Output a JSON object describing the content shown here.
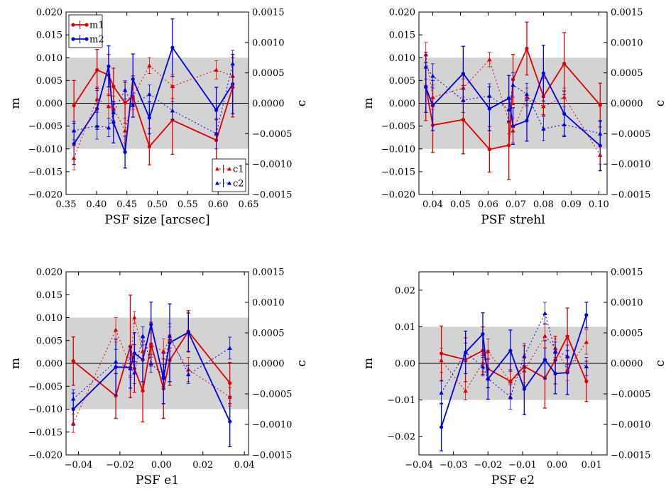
{
  "chart_data": [
    {
      "type": "line",
      "xlabel": "PSF size [arcsec]",
      "ylabel": "m",
      "ylabel_right": "c",
      "xlim": [
        0.35,
        0.65
      ],
      "ylim": [
        -0.02,
        0.02
      ],
      "ylim_right": [
        -0.0015,
        0.0015
      ],
      "xticks": [
        "0.35",
        "0.40",
        "0.45",
        "0.50",
        "0.55",
        "0.60",
        "0.65"
      ],
      "yticks": [
        "−0.020",
        "−0.015",
        "−0.010",
        "−0.005",
        "0.000",
        "0.005",
        "0.010",
        "0.015",
        "0.020"
      ],
      "yticks_right": [
        "−0.0015",
        "−0.0010",
        "−0.0005",
        "0.0000",
        "0.0005",
        "0.0010",
        "0.0015"
      ],
      "band": [
        -0.01,
        0.01
      ],
      "grid": false,
      "legends": [
        {
          "placement": "top-left",
          "entries": [
            "m1",
            "m2"
          ]
        },
        {
          "placement": "bottom-right",
          "entries": [
            "c1",
            "c2"
          ]
        }
      ],
      "series": [
        {
          "name": "m1",
          "axis": "left",
          "style": "solid-circle",
          "color": "#dd0000",
          "x": [
            0.363,
            0.401,
            0.42,
            0.428,
            0.447,
            0.46,
            0.487,
            0.525,
            0.597,
            0.624
          ],
          "y": [
            -0.0005,
            0.0073,
            0.0062,
            0.0037,
            0.0001,
            0.0015,
            -0.0095,
            -0.0037,
            -0.0081,
            0.0035
          ],
          "err": [
            0.0055,
            0.0045,
            0.0045,
            0.004,
            0.0045,
            0.0045,
            0.004,
            0.0075,
            0.0045,
            0.0065
          ]
        },
        {
          "name": "m2",
          "axis": "left",
          "style": "solid-circle",
          "color": "#0000dd",
          "x": [
            0.363,
            0.401,
            0.42,
            0.428,
            0.447,
            0.46,
            0.487,
            0.525,
            0.597,
            0.624
          ],
          "y": [
            -0.0089,
            -0.0012,
            0.0081,
            -0.0042,
            -0.0107,
            0.0053,
            -0.0032,
            0.0122,
            -0.0015,
            0.0042
          ],
          "err": [
            0.0045,
            0.0045,
            0.0045,
            0.0045,
            0.0035,
            0.0055,
            0.0035,
            0.0063,
            0.005,
            0.0065
          ]
        },
        {
          "name": "c1",
          "axis": "right",
          "style": "dotted-triangle",
          "color": "#dd0000",
          "x": [
            0.363,
            0.401,
            0.42,
            0.428,
            0.447,
            0.46,
            0.487,
            0.525,
            0.597,
            0.624
          ],
          "y": [
            -0.0009,
            7e-05,
            -5e-05,
            -8e-05,
            -0.00045,
            0.0001,
            0.00062,
            0.00028,
            0.00055,
            0.00045
          ],
          "err": [
            0.0002,
            0.0002,
            0.0002,
            0.0002,
            0.0002,
            0.0002,
            0.00013,
            0.0002,
            0.00015,
            0.0002
          ]
        },
        {
          "name": "c2",
          "axis": "right",
          "style": "dotted-triangle",
          "color": "#0000dd",
          "x": [
            0.363,
            0.401,
            0.42,
            0.428,
            0.447,
            0.46,
            0.487,
            0.525,
            0.597,
            0.624
          ],
          "y": [
            -0.00045,
            -0.00037,
            -0.0004,
            -0.00015,
            0.00022,
            -3e-05,
            0.00015,
            -0.00012,
            -0.0005,
            0.00065
          ],
          "err": [
            0.00015,
            0.00022,
            0.00015,
            0.00018,
            0.00015,
            0.0002,
            0.00015,
            0.00015,
            0.00025,
            0.00022
          ]
        }
      ]
    },
    {
      "type": "line",
      "xlabel": "PSF strehl",
      "ylabel": "m",
      "ylabel_right": "c",
      "xlim": [
        0.035,
        0.103
      ],
      "ylim": [
        -0.02,
        0.02
      ],
      "ylim_right": [
        -0.0015,
        0.0015
      ],
      "xticks": [
        "0.04",
        "0.05",
        "0.06",
        "0.07",
        "0.08",
        "0.09",
        "0.10"
      ],
      "yticks": [
        "−0.020",
        "−0.015",
        "−0.010",
        "−0.005",
        "0.000",
        "0.005",
        "0.010",
        "0.015",
        "0.020"
      ],
      "yticks_right": [
        "−0.0015",
        "−0.0010",
        "−0.0005",
        "0.0000",
        "0.0005",
        "0.0010",
        "0.0015"
      ],
      "band": [
        -0.01,
        0.01
      ],
      "grid": false,
      "series": [
        {
          "name": "m1",
          "axis": "left",
          "style": "solid-circle",
          "color": "#dd0000",
          "x": [
            0.0375,
            0.04,
            0.051,
            0.0605,
            0.0675,
            0.069,
            0.074,
            0.08,
            0.0875,
            0.1005
          ],
          "y": [
            0.0037,
            -0.0048,
            -0.0036,
            -0.0101,
            -0.0092,
            0.0052,
            0.012,
            0.0015,
            0.0087,
            -0.0004
          ],
          "err": [
            0.0075,
            0.006,
            0.0075,
            0.005,
            0.0075,
            0.0055,
            0.0058,
            0.004,
            0.0068,
            0.0048
          ]
        },
        {
          "name": "m2",
          "axis": "left",
          "style": "solid-circle",
          "color": "#0000dd",
          "x": [
            0.0375,
            0.04,
            0.051,
            0.0605,
            0.0675,
            0.069,
            0.074,
            0.08,
            0.0875,
            0.1005
          ],
          "y": [
            0.0035,
            -0.0005,
            0.0065,
            -0.0012,
            0.0011,
            -0.005,
            -0.0038,
            0.0066,
            -0.0023,
            -0.0093
          ],
          "err": [
            0.0055,
            0.0055,
            0.006,
            0.0048,
            0.005,
            0.004,
            0.0045,
            0.0061,
            0.005,
            0.0055
          ]
        },
        {
          "name": "c1",
          "axis": "right",
          "style": "dotted-triangle",
          "color": "#dd0000",
          "x": [
            0.0375,
            0.04,
            0.051,
            0.0605,
            0.0675,
            0.069,
            0.074,
            0.08,
            0.0875,
            0.1005
          ],
          "y": [
            0.0008,
            0.0001,
            0.00025,
            0.00072,
            -0.0003,
            -0.00045,
            0.0001,
            -5e-05,
            0.0001,
            -0.00085
          ],
          "err": [
            0.0002,
            0.0002,
            0.00015,
            0.00012,
            0.0002,
            0.0002,
            0.00015,
            0.00015,
            0.00015,
            0.00015
          ]
        },
        {
          "name": "c2",
          "axis": "right",
          "style": "dotted-triangle",
          "color": "#0000dd",
          "x": [
            0.0375,
            0.04,
            0.051,
            0.0605,
            0.0675,
            0.069,
            0.074,
            0.08,
            0.0875,
            0.1005
          ],
          "y": [
            0.0006,
            0.00045,
            5e-05,
            0.00012,
            -0.0001,
            0.0003,
            0.00015,
            -0.00042,
            -0.00035,
            -0.0005
          ],
          "err": [
            0.0002,
            0.0002,
            0.0002,
            0.0002,
            0.0002,
            0.0002,
            0.00018,
            0.0002,
            0.00018,
            0.0002
          ]
        }
      ]
    },
    {
      "type": "line",
      "xlabel": "PSF e1",
      "ylabel": "m",
      "ylabel_right": "c",
      "xlim": [
        -0.046,
        0.042
      ],
      "ylim": [
        -0.02,
        0.02
      ],
      "ylim_right": [
        -0.0015,
        0.0015
      ],
      "xticks": [
        "−0.04",
        "−0.02",
        "0.00",
        "0.02",
        "0.04"
      ],
      "xtick_values": [
        -0.04,
        -0.02,
        0.0,
        0.02,
        0.04
      ],
      "yticks": [
        "−0.020",
        "−0.015",
        "−0.010",
        "−0.005",
        "0.000",
        "0.005",
        "0.010",
        "0.015",
        "0.020"
      ],
      "yticks_right": [
        "−0.0015",
        "−0.0010",
        "−0.0005",
        "0.0000",
        "0.0005",
        "0.0010",
        "0.0015"
      ],
      "band": [
        -0.01,
        0.01
      ],
      "grid": false,
      "series": [
        {
          "name": "m1",
          "axis": "left",
          "style": "solid-circle",
          "color": "#dd0000",
          "x": [
            -0.0425,
            -0.022,
            -0.015,
            -0.013,
            -0.009,
            -0.005,
            0.001,
            0.004,
            0.013,
            0.033
          ],
          "y": [
            0.0005,
            -0.0071,
            0.0037,
            -0.0011,
            -0.006,
            0.0042,
            -0.0055,
            0.0007,
            0.007,
            -0.0043
          ],
          "err": [
            0.0053,
            0.0049,
            0.0112,
            0.0052,
            0.0068,
            0.0048,
            0.0065,
            0.0055,
            0.0045,
            0.0045
          ]
        },
        {
          "name": "m2",
          "axis": "left",
          "style": "solid-circle",
          "color": "#0000dd",
          "x": [
            -0.0425,
            -0.022,
            -0.015,
            -0.013,
            -0.009,
            -0.005,
            0.001,
            0.004,
            0.013,
            0.033
          ],
          "y": [
            -0.01,
            -0.0008,
            -0.0009,
            0.0022,
            0.0008,
            0.0085,
            -0.0033,
            0.0045,
            0.0068,
            -0.0127
          ],
          "err": [
            0.0035,
            0.0061,
            0.0045,
            0.0045,
            0.0048,
            0.0049,
            0.0055,
            0.0085,
            0.0042,
            0.0055
          ]
        },
        {
          "name": "c1",
          "axis": "right",
          "style": "dotted-triangle",
          "color": "#dd0000",
          "x": [
            -0.0425,
            -0.022,
            -0.015,
            -0.013,
            -0.009,
            -0.005,
            0.001,
            0.004,
            0.013,
            0.033
          ],
          "y": [
            -0.00098,
            0.00055,
            -5e-05,
            0.00075,
            0.0002,
            0.0003,
            0.0002,
            0.0004,
            -0.0001,
            -0.00055
          ],
          "err": [
            0.00015,
            0.0002,
            0.00015,
            0.0001,
            0.00015,
            0.0002,
            0.0002,
            0.0002,
            0.0002,
            0.00015
          ]
        },
        {
          "name": "c2",
          "axis": "right",
          "style": "dotted-triangle",
          "color": "#0000dd",
          "x": [
            -0.0425,
            -0.022,
            -0.015,
            -0.013,
            -0.009,
            -0.005,
            0.001,
            0.004,
            0.013,
            0.033
          ],
          "y": [
            -0.00058,
            3e-05,
            -8e-05,
            -0.00015,
            0.00045,
            0.0,
            -0.0002,
            0.00045,
            -0.00018,
            0.00025
          ],
          "err": [
            0.00015,
            0.0002,
            0.00015,
            0.00018,
            0.00015,
            0.00015,
            0.00018,
            0.0002,
            0.00015,
            0.00018
          ]
        }
      ]
    },
    {
      "type": "line",
      "xlabel": "PSF e2",
      "ylabel": "m",
      "ylabel_right": "c",
      "xlim": [
        -0.04,
        0.0145
      ],
      "ylim": [
        -0.025,
        0.025
      ],
      "ylim_right": [
        -0.0015,
        0.0015
      ],
      "xticks": [
        "−0.04",
        "−0.03",
        "−0.02",
        "−0.01",
        "0.00",
        "0.01"
      ],
      "xtick_values": [
        -0.04,
        -0.03,
        -0.02,
        -0.01,
        0.0,
        0.01
      ],
      "yticks": [
        "−0.02",
        "−0.01",
        "0.00",
        "0.01",
        "0.02"
      ],
      "ytick_values": [
        -0.02,
        -0.01,
        0.0,
        0.01,
        0.02
      ],
      "yticks_right": [
        "−0.0015",
        "−0.0010",
        "−0.0005",
        "0.0000",
        "0.0005",
        "0.0010",
        "0.0015"
      ],
      "band": [
        -0.01,
        0.01
      ],
      "grid": false,
      "series": [
        {
          "name": "m1",
          "axis": "left",
          "style": "solid-circle",
          "color": "#dd0000",
          "x": [
            -0.0335,
            -0.0265,
            -0.0215,
            -0.02,
            -0.0135,
            -0.0095,
            -0.0035,
            -0.0005,
            0.003,
            0.0085
          ],
          "y": [
            0.0027,
            0.001,
            0.0035,
            -0.0015,
            -0.0049,
            -0.0008,
            -0.004,
            0.0009,
            0.0074,
            -0.0049
          ],
          "err": [
            0.0075,
            0.006,
            0.0065,
            0.005,
            0.0048,
            0.0056,
            0.0082,
            0.0065,
            0.0077,
            0.0055
          ]
        },
        {
          "name": "m2",
          "axis": "left",
          "style": "solid-circle",
          "color": "#0000dd",
          "x": [
            -0.0335,
            -0.0265,
            -0.0215,
            -0.02,
            -0.0135,
            -0.0095,
            -0.0035,
            -0.0005,
            0.003,
            0.0085
          ],
          "y": [
            -0.0174,
            0.003,
            0.008,
            -0.0043,
            0.0035,
            -0.007,
            0.001,
            -0.0028,
            -0.0025,
            0.0132
          ],
          "err": [
            0.0065,
            0.0058,
            0.0058,
            0.0055,
            0.0056,
            0.007,
            0.0052,
            0.0055,
            0.006,
            0.0035
          ]
        },
        {
          "name": "c1",
          "axis": "right",
          "style": "dotted-triangle",
          "color": "#dd0000",
          "x": [
            -0.0335,
            -0.0265,
            -0.0215,
            -0.02,
            -0.0135,
            -0.0095,
            -0.0035,
            -0.0005,
            0.003,
            0.0085
          ],
          "y": [
            5e-05,
            -0.00045,
            1e-05,
            0.0002,
            -0.0003,
            -0.00012,
            0.00045,
            0.00025,
            -0.0001,
            0.00035
          ],
          "err": [
            0.0002,
            0.00015,
            0.00015,
            0.0002,
            0.0002,
            0.0002,
            0.0002,
            0.00015,
            0.00018,
            0.0002
          ]
        },
        {
          "name": "c2",
          "axis": "right",
          "style": "dotted-triangle",
          "color": "#0000dd",
          "x": [
            -0.0335,
            -0.0265,
            -0.0215,
            -0.02,
            -0.0135,
            -0.0095,
            -0.0035,
            -0.0005,
            0.003,
            0.0085
          ],
          "y": [
            -0.00048,
            0.00018,
            -5e-05,
            -0.00025,
            -0.00055,
            0.00012,
            0.00082,
            0.0002,
            0.00012,
            -5e-05
          ],
          "err": [
            0.0002,
            0.00015,
            0.00015,
            0.00015,
            0.0002,
            0.0002,
            0.00018,
            0.00015,
            0.00018,
            0.00015
          ]
        }
      ]
    }
  ]
}
